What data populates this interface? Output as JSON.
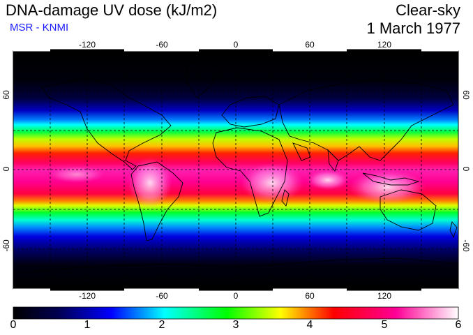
{
  "header": {
    "title": "DNA-damage UV dose (kJ/m2)",
    "subtitle": "MSR - KNMI",
    "sky_condition": "Clear-sky",
    "date": "1 March 1977"
  },
  "map": {
    "lon_range": [
      -180,
      180
    ],
    "lat_range": [
      -90,
      90
    ],
    "lon_ticks": [
      "-120",
      "-60",
      "0",
      "60",
      "120"
    ],
    "lat_ticks_left": [
      "60",
      "0",
      "-60"
    ],
    "lat_ticks_right": [
      "60",
      "0",
      "-60"
    ],
    "grid_spacing_deg": 30
  },
  "colorbar": {
    "min": 0,
    "max": 6,
    "labels": [
      "0",
      "1",
      "2",
      "3",
      "4",
      "5",
      "6"
    ],
    "colors": [
      "#000000",
      "#000050",
      "#0000ff",
      "#00ffff",
      "#00ff00",
      "#ffff00",
      "#ff0000",
      "#ff0096",
      "#ffffff"
    ]
  }
}
